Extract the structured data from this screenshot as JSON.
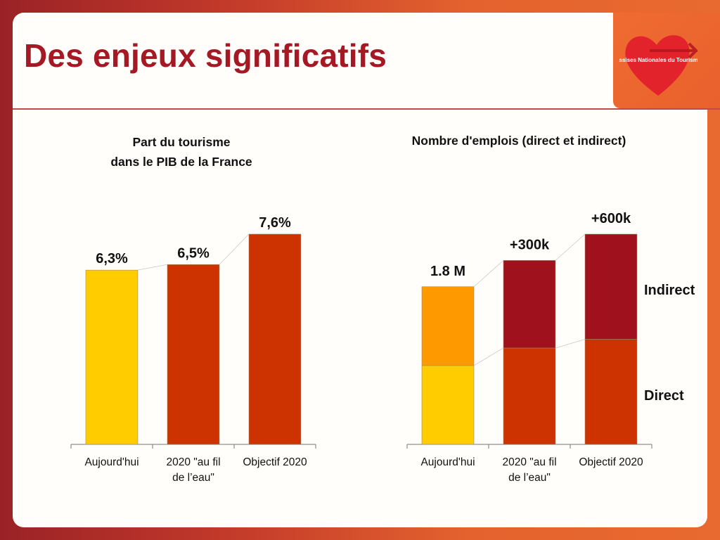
{
  "slide": {
    "title": "Des enjeux significatifs",
    "logo_text": "Assises Nationales du Tourisme"
  },
  "colors": {
    "title": "#a51925",
    "yellow": "#ffcc00",
    "orange": "#ff9900",
    "red": "#cc3300",
    "darkred": "#a0111e"
  },
  "chart_data": [
    {
      "type": "bar",
      "title_lines": [
        "Part du tourisme",
        "dans le PIB de la France"
      ],
      "categories": [
        [
          "Aujourd'hui"
        ],
        [
          "2020 \"au fil",
          "de l’eau\""
        ],
        [
          "Objectif 2020"
        ]
      ],
      "values": [
        6.3,
        6.5,
        7.6
      ],
      "labels": [
        "6,3%",
        "6,5%",
        "7,6%"
      ],
      "colors": [
        "#ffcc00",
        "#cc3300",
        "#cc3300"
      ],
      "grid": false,
      "y_axis_visible": false
    },
    {
      "type": "bar",
      "stacked": true,
      "title": "Nombre d'emplois (direct et indirect)",
      "categories": [
        [
          "Aujourd'hui"
        ],
        [
          "2020 \"au fil",
          "de l’eau\""
        ],
        [
          "Objectif 2020"
        ]
      ],
      "series": [
        {
          "name": "Direct",
          "values": [
            0.9,
            1.1,
            1.2
          ],
          "colors": [
            "#ffcc00",
            "#cc3300",
            "#cc3300"
          ]
        },
        {
          "name": "Indirect",
          "values": [
            0.9,
            1.0,
            1.2
          ],
          "colors": [
            "#ff9900",
            "#a0111e",
            "#a0111e"
          ]
        }
      ],
      "totals": [
        1.8,
        2.1,
        2.4
      ],
      "labels": [
        "1.8 M",
        "+300k",
        "+600k"
      ],
      "legend": [
        "Indirect",
        "Direct"
      ],
      "legend_placement": "right",
      "grid": false,
      "y_axis_visible": false
    }
  ]
}
